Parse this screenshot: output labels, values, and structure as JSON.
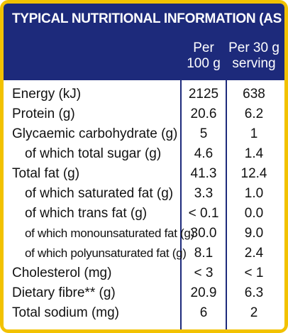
{
  "table": {
    "title": "TYPICAL NUTRITIONAL INFORMATION (AS PACKED)",
    "col1_line1": "Per",
    "col1_line2": "100 g",
    "col2_line1": "Per 30 g",
    "col2_line2": "serving",
    "rows": [
      {
        "label": "Energy (kJ)",
        "per100": "2125",
        "perServing": "638"
      },
      {
        "label": "Protein (g)",
        "per100": "20.6",
        "perServing": "6.2"
      },
      {
        "label": "Glycaemic carbohydrate (g)",
        "per100": "5",
        "perServing": "1"
      },
      {
        "label": "of which total sugar (g)",
        "per100": "4.6",
        "perServing": "1.4"
      },
      {
        "label": "Total fat (g)",
        "per100": "41.3",
        "perServing": "12.4"
      },
      {
        "label": "of which saturated fat (g)",
        "per100": "3.3",
        "perServing": "1.0"
      },
      {
        "label": "of which trans fat (g)",
        "per100": "< 0.1",
        "perServing": "0.0"
      },
      {
        "label": "of which monounsaturated fat (g)",
        "per100": "30.0",
        "perServing": "9.0"
      },
      {
        "label": "of which polyunsaturated fat (g)",
        "per100": "8.1",
        "perServing": "2.4"
      },
      {
        "label": "Cholesterol (mg)",
        "per100": "< 3",
        "perServing": "< 1"
      },
      {
        "label": "Dietary fibre** (g)",
        "per100": "20.9",
        "perServing": "6.3"
      },
      {
        "label": "Total sodium (mg)",
        "per100": "6",
        "perServing": "2"
      }
    ]
  },
  "colors": {
    "border": "#f2c200",
    "header": "#1d2a7b",
    "text": "#111111"
  }
}
